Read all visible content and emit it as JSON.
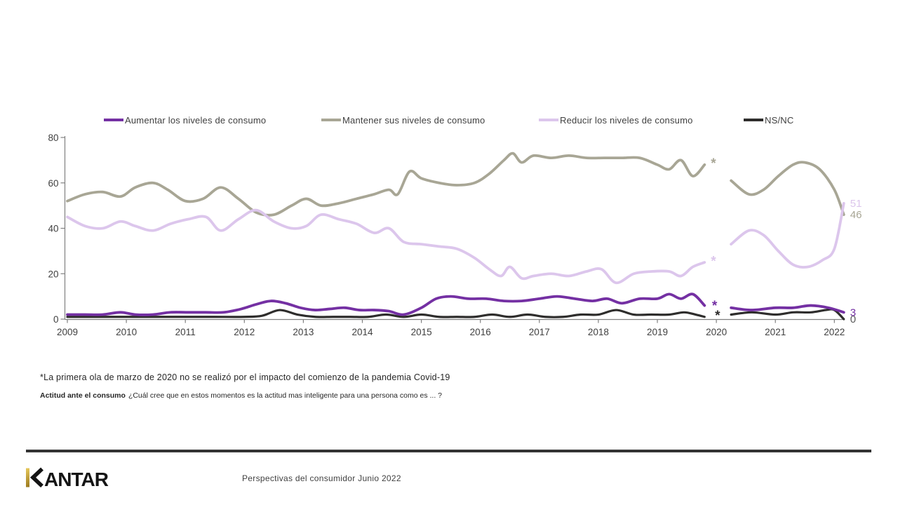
{
  "legend": {
    "items": [
      {
        "label": "Aumentar los niveles de consumo",
        "color": "#7430A3"
      },
      {
        "label": "Mantener sus niveles de consumo",
        "color": "#A8A695"
      },
      {
        "label": "Reducir los niveles de consumo",
        "color": "#DCC6EC"
      },
      {
        "label": "NS/NC",
        "color": "#2E2D2C"
      }
    ]
  },
  "chart_data": {
    "type": "line",
    "title": "",
    "xlabel": "",
    "ylabel": "",
    "ylim": [
      0,
      80
    ],
    "grid": false,
    "legend_position": "top",
    "x_axis": {
      "ticks": [
        2009,
        2010,
        2011,
        2012,
        2013,
        2014,
        2015,
        2016,
        2017,
        2018,
        2019,
        2020,
        2021,
        2022
      ]
    },
    "y_axis": {
      "ticks": [
        0,
        20,
        40,
        60,
        80
      ]
    },
    "gap_note": "No data for first wave of March 2020 (Covid-19)",
    "series": [
      {
        "name": "Aumentar los niveles de consumo",
        "color": "#7430A3",
        "end_label": "3",
        "end_label_color": "#7430A3",
        "asterisk": {
          "x": 2019.97,
          "y": 5.8
        },
        "segments": [
          [
            [
              2009,
              2
            ],
            [
              2009.3,
              2
            ],
            [
              2009.6,
              2
            ],
            [
              2009.9,
              3
            ],
            [
              2010.15,
              2
            ],
            [
              2010.45,
              2
            ],
            [
              2010.75,
              3
            ],
            [
              2011.05,
              3
            ],
            [
              2011.35,
              3
            ],
            [
              2011.65,
              3
            ],
            [
              2011.95,
              4.5
            ],
            [
              2012.2,
              6.5
            ],
            [
              2012.45,
              8
            ],
            [
              2012.7,
              7
            ],
            [
              2012.95,
              5
            ],
            [
              2013.2,
              4
            ],
            [
              2013.45,
              4.5
            ],
            [
              2013.7,
              5
            ],
            [
              2013.95,
              4
            ],
            [
              2014.2,
              4
            ],
            [
              2014.45,
              3.5
            ],
            [
              2014.7,
              2
            ],
            [
              2015,
              5
            ],
            [
              2015.25,
              9
            ],
            [
              2015.5,
              10
            ],
            [
              2015.8,
              9
            ],
            [
              2016.1,
              9
            ],
            [
              2016.4,
              8
            ],
            [
              2016.7,
              8
            ],
            [
              2017,
              9
            ],
            [
              2017.3,
              10
            ],
            [
              2017.6,
              9
            ],
            [
              2017.9,
              8
            ],
            [
              2018.15,
              9
            ],
            [
              2018.4,
              7
            ],
            [
              2018.7,
              9
            ],
            [
              2019,
              9
            ],
            [
              2019.2,
              11
            ],
            [
              2019.4,
              9
            ],
            [
              2019.6,
              11
            ],
            [
              2019.8,
              6
            ]
          ],
          [
            [
              2020.25,
              5
            ],
            [
              2020.6,
              4
            ],
            [
              2021,
              5
            ],
            [
              2021.3,
              5
            ],
            [
              2021.6,
              6
            ],
            [
              2021.9,
              5
            ],
            [
              2022.16,
              3
            ]
          ]
        ]
      },
      {
        "name": "Mantener sus niveles de consumo",
        "color": "#A8A695",
        "end_label": "46",
        "end_label_color": "#A8A695",
        "asterisk": {
          "x": 2019.95,
          "y": 68.5
        },
        "segments": [
          [
            [
              2009,
              52
            ],
            [
              2009.3,
              55
            ],
            [
              2009.6,
              56
            ],
            [
              2009.9,
              54
            ],
            [
              2010.15,
              58
            ],
            [
              2010.45,
              60
            ],
            [
              2010.7,
              57
            ],
            [
              2011,
              52
            ],
            [
              2011.3,
              53
            ],
            [
              2011.6,
              58
            ],
            [
              2011.9,
              53
            ],
            [
              2012.2,
              47
            ],
            [
              2012.5,
              46
            ],
            [
              2012.8,
              50
            ],
            [
              2013.05,
              53
            ],
            [
              2013.3,
              50
            ],
            [
              2013.6,
              51
            ],
            [
              2013.9,
              53
            ],
            [
              2014.2,
              55
            ],
            [
              2014.45,
              57
            ],
            [
              2014.6,
              55
            ],
            [
              2014.8,
              65
            ],
            [
              2015,
              62
            ],
            [
              2015.3,
              60
            ],
            [
              2015.6,
              59
            ],
            [
              2015.9,
              60
            ],
            [
              2016.15,
              64
            ],
            [
              2016.4,
              70
            ],
            [
              2016.55,
              73
            ],
            [
              2016.7,
              69
            ],
            [
              2016.9,
              72
            ],
            [
              2017.2,
              71
            ],
            [
              2017.5,
              72
            ],
            [
              2017.8,
              71
            ],
            [
              2018.1,
              71
            ],
            [
              2018.4,
              71
            ],
            [
              2018.7,
              71
            ],
            [
              2019,
              68
            ],
            [
              2019.2,
              66
            ],
            [
              2019.4,
              70
            ],
            [
              2019.6,
              63
            ],
            [
              2019.8,
              68
            ]
          ],
          [
            [
              2020.25,
              61
            ],
            [
              2020.55,
              55
            ],
            [
              2020.8,
              57
            ],
            [
              2021.05,
              63
            ],
            [
              2021.3,
              68
            ],
            [
              2021.5,
              69
            ],
            [
              2021.75,
              66
            ],
            [
              2022,
              57
            ],
            [
              2022.16,
              46
            ]
          ]
        ]
      },
      {
        "name": "Reducir los niveles de consumo",
        "color": "#DCC6EC",
        "end_label": "51",
        "end_label_color": "#DCC6EC",
        "asterisk": {
          "x": 2019.95,
          "y": 25.5
        },
        "segments": [
          [
            [
              2009,
              45
            ],
            [
              2009.3,
              41
            ],
            [
              2009.6,
              40
            ],
            [
              2009.9,
              43
            ],
            [
              2010.15,
              41
            ],
            [
              2010.45,
              39
            ],
            [
              2010.75,
              42
            ],
            [
              2011.05,
              44
            ],
            [
              2011.35,
              45
            ],
            [
              2011.6,
              39
            ],
            [
              2011.9,
              44
            ],
            [
              2012.2,
              48
            ],
            [
              2012.5,
              43
            ],
            [
              2012.8,
              40
            ],
            [
              2013.05,
              41
            ],
            [
              2013.3,
              46
            ],
            [
              2013.6,
              44
            ],
            [
              2013.9,
              42
            ],
            [
              2014.2,
              38
            ],
            [
              2014.45,
              40
            ],
            [
              2014.7,
              34
            ],
            [
              2015,
              33
            ],
            [
              2015.3,
              32
            ],
            [
              2015.6,
              31
            ],
            [
              2015.9,
              27
            ],
            [
              2016.15,
              22
            ],
            [
              2016.35,
              19
            ],
            [
              2016.5,
              23
            ],
            [
              2016.7,
              18
            ],
            [
              2016.9,
              19
            ],
            [
              2017.2,
              20
            ],
            [
              2017.5,
              19
            ],
            [
              2017.8,
              21
            ],
            [
              2018.05,
              22
            ],
            [
              2018.3,
              16
            ],
            [
              2018.6,
              20
            ],
            [
              2018.9,
              21
            ],
            [
              2019.2,
              21
            ],
            [
              2019.4,
              19
            ],
            [
              2019.6,
              23
            ],
            [
              2019.8,
              25
            ]
          ],
          [
            [
              2020.25,
              33
            ],
            [
              2020.55,
              39
            ],
            [
              2020.8,
              37
            ],
            [
              2021.05,
              30
            ],
            [
              2021.3,
              24
            ],
            [
              2021.55,
              23
            ],
            [
              2021.8,
              26
            ],
            [
              2022,
              31
            ],
            [
              2022.16,
              51
            ]
          ]
        ]
      },
      {
        "name": "NS/NC",
        "color": "#2E2D2C",
        "end_label": "0",
        "end_label_color": "#595959",
        "asterisk": {
          "x": 2020.02,
          "y": 1.6
        },
        "segments": [
          [
            [
              2009,
              1
            ],
            [
              2009.5,
              1
            ],
            [
              2010,
              1
            ],
            [
              2010.5,
              1
            ],
            [
              2011,
              1
            ],
            [
              2011.5,
              1
            ],
            [
              2012,
              1
            ],
            [
              2012.3,
              1.5
            ],
            [
              2012.6,
              4
            ],
            [
              2012.9,
              2
            ],
            [
              2013.2,
              1
            ],
            [
              2013.5,
              1
            ],
            [
              2013.8,
              1
            ],
            [
              2014.1,
              1
            ],
            [
              2014.4,
              2
            ],
            [
              2014.7,
              1
            ],
            [
              2015,
              2
            ],
            [
              2015.3,
              1
            ],
            [
              2015.6,
              1
            ],
            [
              2015.9,
              1
            ],
            [
              2016.2,
              2
            ],
            [
              2016.5,
              1
            ],
            [
              2016.8,
              2
            ],
            [
              2017.1,
              1
            ],
            [
              2017.4,
              1
            ],
            [
              2017.7,
              2
            ],
            [
              2018,
              2
            ],
            [
              2018.3,
              4
            ],
            [
              2018.6,
              2
            ],
            [
              2018.9,
              2
            ],
            [
              2019.2,
              2
            ],
            [
              2019.45,
              3
            ],
            [
              2019.65,
              2
            ],
            [
              2019.8,
              1
            ]
          ],
          [
            [
              2020.25,
              2
            ],
            [
              2020.6,
              3
            ],
            [
              2021,
              2
            ],
            [
              2021.3,
              3
            ],
            [
              2021.6,
              3
            ],
            [
              2021.85,
              4
            ],
            [
              2022,
              4
            ],
            [
              2022.16,
              0
            ]
          ]
        ]
      }
    ]
  },
  "footnotes": {
    "line1": "*La primera ola de marzo de 2020 no se realizó por el impacto del comienzo de la pandemia Covid-19",
    "line2_bold": "Actitud ante el consumo",
    "line2_rest": "¿Cuál cree que en estos momentos es la actitud mas inteligente para una persona como es ... ?"
  },
  "footer": {
    "logo_text": "KANTAR",
    "caption": "Perspectivas del consumidor Junio 2022"
  }
}
